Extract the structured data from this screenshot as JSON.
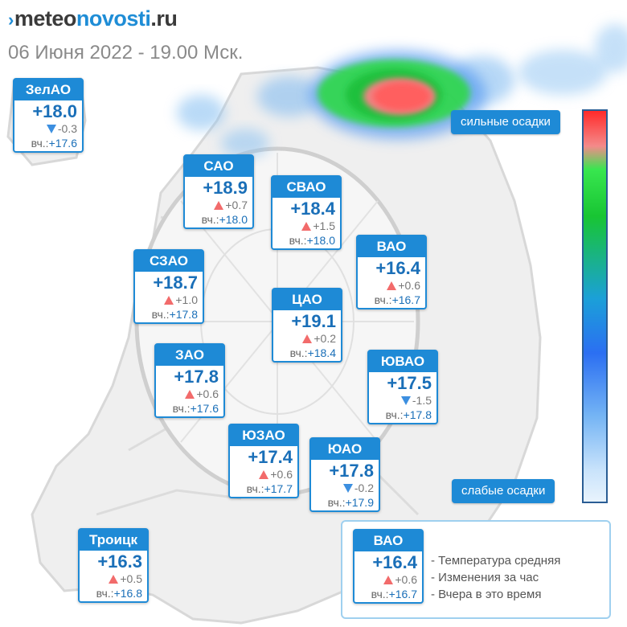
{
  "header": {
    "logo_prefix": "meteo",
    "logo_accent": "novosti",
    "logo_suffix": ".ru",
    "subtitle": "06 Июня 2022 - 19.00 Мск."
  },
  "colors": {
    "accent": "#1e8ad6",
    "temp_text": "#1a6fb8",
    "rise": "#f26b6b",
    "fall": "#3c8fe0"
  },
  "districts": [
    {
      "id": "zelao",
      "name": "ЗелАО",
      "temp": "+18.0",
      "dir": "down",
      "delta": "-0.3",
      "yest_label": "вч.:",
      "yest": "+17.6"
    },
    {
      "id": "sao",
      "name": "САО",
      "temp": "+18.9",
      "dir": "up",
      "delta": "+0.7",
      "yest_label": "вч.:",
      "yest": "+18.0"
    },
    {
      "id": "svao",
      "name": "СВАО",
      "temp": "+18.4",
      "dir": "up",
      "delta": "+1.5",
      "yest_label": "вч.:",
      "yest": "+18.0"
    },
    {
      "id": "vao",
      "name": "ВАО",
      "temp": "+16.4",
      "dir": "up",
      "delta": "+0.6",
      "yest_label": "вч.:",
      "yest": "+16.7"
    },
    {
      "id": "szao",
      "name": "СЗАО",
      "temp": "+18.7",
      "dir": "up",
      "delta": "+1.0",
      "yest_label": "вч.:",
      "yest": "+17.8"
    },
    {
      "id": "cao",
      "name": "ЦАО",
      "temp": "+19.1",
      "dir": "up",
      "delta": "+0.2",
      "yest_label": "вч.:",
      "yest": "+18.4"
    },
    {
      "id": "zao",
      "name": "ЗАО",
      "temp": "+17.8",
      "dir": "up",
      "delta": "+0.6",
      "yest_label": "вч.:",
      "yest": "+17.6"
    },
    {
      "id": "yuvao",
      "name": "ЮВАО",
      "temp": "+17.5",
      "dir": "down",
      "delta": "-1.5",
      "yest_label": "вч.:",
      "yest": "+17.8"
    },
    {
      "id": "yuzao",
      "name": "ЮЗАО",
      "temp": "+17.4",
      "dir": "up",
      "delta": "+0.6",
      "yest_label": "вч.:",
      "yest": "+17.7"
    },
    {
      "id": "yuao",
      "name": "ЮАО",
      "temp": "+17.8",
      "dir": "down",
      "delta": "-0.2",
      "yest_label": "вч.:",
      "yest": "+17.9"
    },
    {
      "id": "troitsk",
      "name": "Троицк",
      "temp": "+16.3",
      "dir": "up",
      "delta": "+0.5",
      "yest_label": "вч.:",
      "yest": "+16.8"
    }
  ],
  "precip_scale": {
    "high_label": "сильные осадки",
    "low_label": "слабые осадки"
  },
  "legend": {
    "sample": {
      "name": "ВАО",
      "temp": "+16.4",
      "dir": "up",
      "delta": "+0.6",
      "yest_label": "вч.:",
      "yest": "+16.7"
    },
    "lines": [
      "- Температура средняя",
      "- Изменения за час",
      "- Вчера в это время"
    ]
  }
}
